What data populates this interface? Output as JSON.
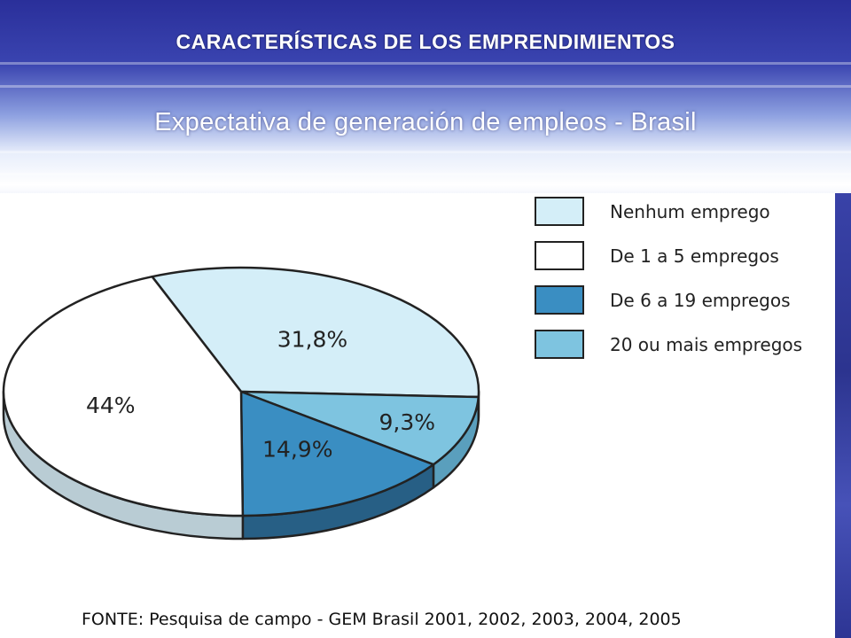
{
  "slide": {
    "title": "CARACTERÍSTICAS DE LOS EMPRENDIMIENTOS",
    "subtitle": "Expectativa de generación de empleos - Brasil",
    "source": "FONTE: Pesquisa de campo - GEM Brasil 2001, 2002, 2003, 2004, 2005"
  },
  "chart_data": {
    "type": "pie",
    "title": "",
    "legend_position": "top-right",
    "slices": [
      {
        "label": "Nenhum emprego",
        "value": 31.8,
        "display": "31,8%",
        "color": "#d4eef8",
        "side_color": "#a8c8d6"
      },
      {
        "label": "20 ou mais empregos",
        "value": 9.3,
        "display": "9,3%",
        "color": "#7ec4e0",
        "side_color": "#5a9fbd"
      },
      {
        "label": "De 6 a 19 empregos",
        "value": 14.9,
        "display": "14,9%",
        "color": "#3a8ec2",
        "side_color": "#275f85"
      },
      {
        "label": "De 1 a 5 empregos",
        "value": 44,
        "display": "44%",
        "color": "#ffffff",
        "side_color": "#b9ccd4"
      }
    ],
    "legend": [
      {
        "label": "Nenhum emprego",
        "color": "#d4eef8"
      },
      {
        "label": "De 1 a 5 empregos",
        "color": "#ffffff"
      },
      {
        "label": "De 6 a 19 empregos",
        "color": "#3a8ec2"
      },
      {
        "label": "20 ou mais empregos",
        "color": "#7ec4e0"
      }
    ]
  }
}
